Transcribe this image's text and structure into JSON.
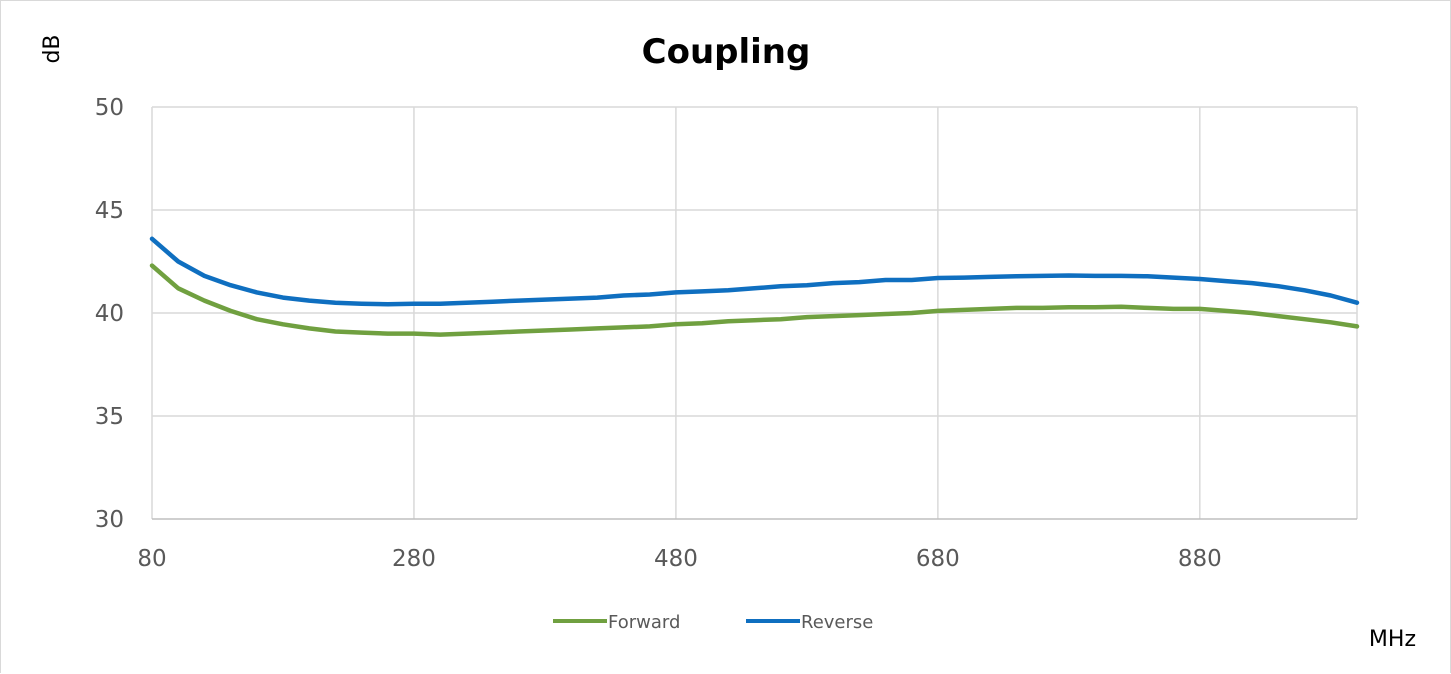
{
  "chart_data": {
    "type": "line",
    "title": "Coupling",
    "xlabel": "MHz",
    "ylabel": "dB",
    "xlim": [
      80,
      1000
    ],
    "ylim": [
      30,
      50
    ],
    "x_ticks": [
      "80",
      "280",
      "480",
      "680",
      "880"
    ],
    "x_tick_values": [
      80,
      280,
      480,
      680,
      880
    ],
    "y_ticks": [
      "30",
      "35",
      "40",
      "45",
      "50"
    ],
    "y_tick_values": [
      30,
      35,
      40,
      45,
      50
    ],
    "grid": true,
    "legend_position": "bottom",
    "series": [
      {
        "name": "Forward",
        "color": "#70a040",
        "x": [
          80,
          100,
          120,
          140,
          160,
          180,
          200,
          220,
          240,
          260,
          280,
          300,
          320,
          340,
          360,
          380,
          400,
          420,
          440,
          460,
          480,
          500,
          520,
          540,
          560,
          580,
          600,
          620,
          640,
          660,
          680,
          700,
          720,
          740,
          760,
          780,
          800,
          820,
          840,
          860,
          880,
          900,
          920,
          940,
          960,
          980,
          1000
        ],
        "y": [
          42.3,
          41.2,
          40.6,
          40.1,
          39.7,
          39.45,
          39.25,
          39.1,
          39.05,
          39.0,
          39.0,
          38.95,
          39.0,
          39.05,
          39.1,
          39.15,
          39.2,
          39.25,
          39.3,
          39.35,
          39.45,
          39.5,
          39.6,
          39.65,
          39.7,
          39.8,
          39.85,
          39.9,
          39.95,
          40.0,
          40.1,
          40.15,
          40.2,
          40.25,
          40.25,
          40.28,
          40.28,
          40.3,
          40.25,
          40.2,
          40.2,
          40.1,
          40.0,
          39.85,
          39.7,
          39.55,
          39.35
        ]
      },
      {
        "name": "Reverse",
        "color": "#0f6fc0",
        "x": [
          80,
          100,
          120,
          140,
          160,
          180,
          200,
          220,
          240,
          260,
          280,
          300,
          320,
          340,
          360,
          380,
          400,
          420,
          440,
          460,
          480,
          500,
          520,
          540,
          560,
          580,
          600,
          620,
          640,
          660,
          680,
          700,
          720,
          740,
          760,
          780,
          800,
          820,
          840,
          860,
          880,
          900,
          920,
          940,
          960,
          980,
          1000
        ],
        "y": [
          43.6,
          42.5,
          41.8,
          41.35,
          41.0,
          40.75,
          40.6,
          40.5,
          40.45,
          40.42,
          40.45,
          40.45,
          40.5,
          40.55,
          40.6,
          40.65,
          40.7,
          40.75,
          40.85,
          40.9,
          41.0,
          41.05,
          41.1,
          41.2,
          41.3,
          41.35,
          41.45,
          41.5,
          41.6,
          41.6,
          41.7,
          41.72,
          41.75,
          41.78,
          41.8,
          41.82,
          41.8,
          41.8,
          41.78,
          41.72,
          41.65,
          41.55,
          41.45,
          41.3,
          41.1,
          40.85,
          40.5
        ]
      }
    ]
  }
}
